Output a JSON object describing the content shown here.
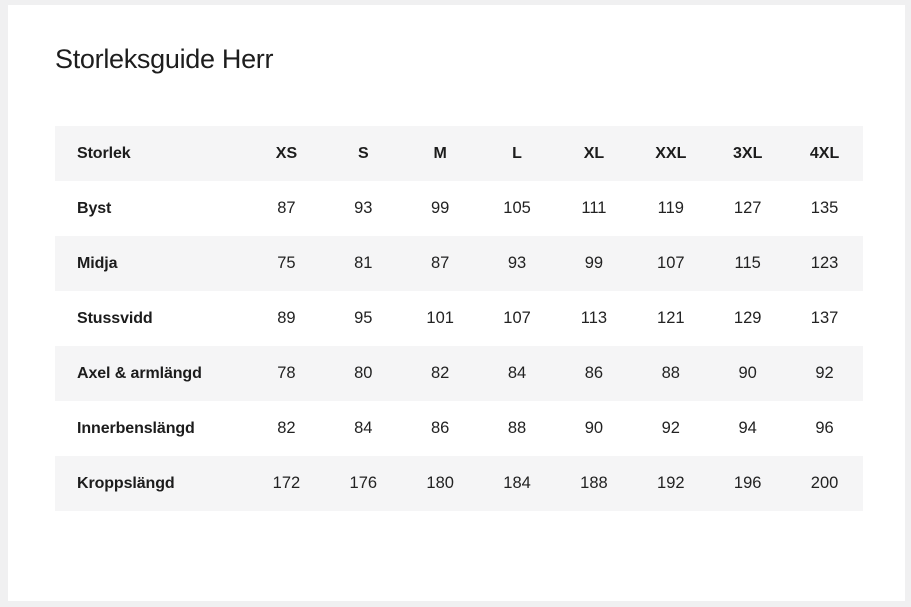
{
  "page": {
    "title": "Storleksguide Herr"
  },
  "table": {
    "header": [
      "Storlek",
      "XS",
      "S",
      "M",
      "L",
      "XL",
      "XXL",
      "3XL",
      "4XL"
    ],
    "rows": [
      {
        "label": "Byst",
        "values": [
          87,
          93,
          99,
          105,
          111,
          119,
          127,
          135
        ]
      },
      {
        "label": "Midja",
        "values": [
          75,
          81,
          87,
          93,
          99,
          107,
          115,
          123
        ]
      },
      {
        "label": "Stussvidd",
        "values": [
          89,
          95,
          101,
          107,
          113,
          121,
          129,
          137
        ]
      },
      {
        "label": "Axel & armlängd",
        "values": [
          78,
          80,
          82,
          84,
          86,
          88,
          90,
          92
        ]
      },
      {
        "label": "Innerbenslängd",
        "values": [
          82,
          84,
          86,
          88,
          90,
          92,
          94,
          96
        ]
      },
      {
        "label": "Kroppslängd",
        "values": [
          172,
          176,
          180,
          184,
          188,
          192,
          196,
          200
        ]
      }
    ]
  },
  "colors": {
    "zebra_row": "#f5f5f6",
    "page_frame": "#f0f0f1",
    "card_background": "#ffffff",
    "text": "#1c1c1c"
  }
}
